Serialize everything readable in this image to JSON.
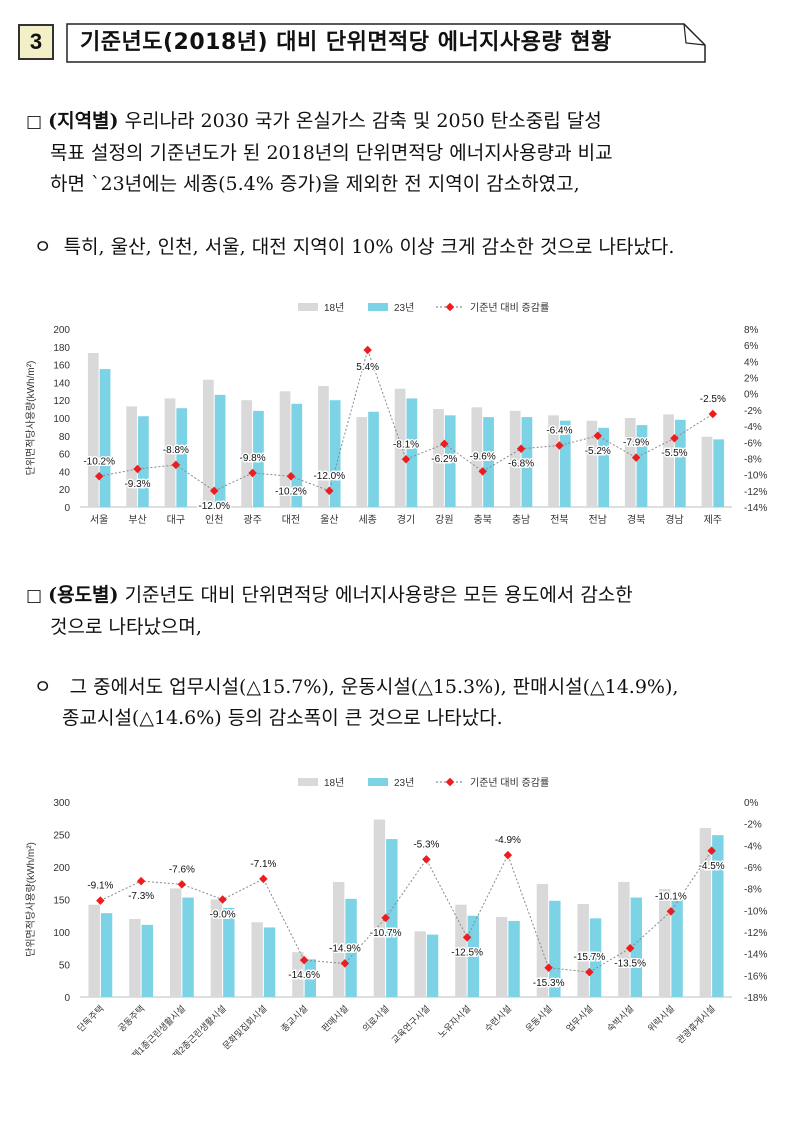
{
  "header": {
    "number": "3",
    "title": "기준년도(2018년) 대비 단위면적당 에너지사용량 현황"
  },
  "section1": {
    "marker": "□",
    "bold": "(지역별)",
    "line1": " 우리나라 2030 국가 온실가스 감축 및 2050 탄소중립 달성",
    "line2": "목표 설정의 기준년도가 된 2018년의 단위면적당 에너지사용량과 비교",
    "line3": "하면 `23년에는 세종(5.4% 증가)을 제외한 전 지역이 감소하였고,",
    "sub_marker": "ㅇ",
    "sub_text": "특히, 울산, 인천, 서울, 대전 지역이 10% 이상 크게 감소한 것으로 나타났다."
  },
  "section2": {
    "marker": "□",
    "bold": "(용도별)",
    "line1": " 기준년도 대비 단위면적당 에너지사용량은 모든 용도에서 감소한",
    "line2": "것으로 나타났으며,",
    "sub_marker": "ㅇ",
    "sub_line1": "그 중에서도 업무시설(△15.7%), 운동시설(△15.3%), 판매시설(△14.9%),",
    "sub_line2": "종교시설(△14.6%) 등의 감소폭이 큰 것으로 나타났다."
  },
  "legend": {
    "s18": "18년",
    "s23": "23년",
    "rate": "기준년 대비 증감률"
  },
  "colors": {
    "bar18": "#d9d9d9",
    "bar23": "#7dd3e6",
    "rate": "#ee1c1c"
  },
  "chart_data": [
    {
      "type": "bar",
      "ylabel": "단위면적당사용량(kWh/m²)",
      "ylim": [
        0,
        200
      ],
      "yticks": [
        "0",
        "20",
        "40",
        "60",
        "80",
        "100",
        "120",
        "140",
        "160",
        "180",
        "200"
      ],
      "y2lim": [
        -14,
        8
      ],
      "y2ticks": [
        "-14%",
        "-12%",
        "-10%",
        "-8%",
        "-6%",
        "-4%",
        "-2%",
        "0%",
        "2%",
        "4%",
        "6%",
        "8%"
      ],
      "categories": [
        "서울",
        "부산",
        "대구",
        "인천",
        "광주",
        "대전",
        "울산",
        "세종",
        "경기",
        "강원",
        "충북",
        "충남",
        "전북",
        "전남",
        "경북",
        "경남",
        "제주"
      ],
      "series": [
        {
          "name": "18년",
          "values": [
            173,
            113,
            122,
            143,
            120,
            130,
            136,
            101,
            133,
            110,
            112,
            108,
            103,
            97,
            100,
            104,
            79
          ]
        },
        {
          "name": "23년",
          "values": [
            155,
            102,
            111,
            126,
            108,
            116,
            120,
            107,
            122,
            103,
            101,
            101,
            97,
            89,
            92,
            98,
            76
          ]
        },
        {
          "name": "기준년 대비 증감률",
          "values": [
            -10.2,
            -9.3,
            -8.8,
            -12.0,
            -9.8,
            -10.2,
            -12.0,
            5.4,
            -8.1,
            -6.2,
            -9.6,
            -6.8,
            -6.4,
            -5.2,
            -7.9,
            -5.5,
            -2.5
          ]
        }
      ],
      "rate_labels": [
        "-10.2%",
        "-9.3%",
        "-8.8%",
        "-12.0%",
        "-9.8%",
        "-10.2%",
        "-12.0%",
        "5.4%",
        "-8.1%",
        "-6.2%",
        "-9.6%",
        "-6.8%",
        "-6.4%",
        "-5.2%",
        "-7.9%",
        "-5.5%",
        "-2.5%"
      ]
    },
    {
      "type": "bar",
      "ylabel": "단위면적당사용량(kWh/m²)",
      "ylim": [
        0,
        300
      ],
      "yticks": [
        "0",
        "50",
        "100",
        "150",
        "200",
        "250",
        "300"
      ],
      "y2lim": [
        -18,
        0
      ],
      "y2ticks": [
        "-18%",
        "-16%",
        "-14%",
        "-12%",
        "-10%",
        "-8%",
        "-6%",
        "-4%",
        "-2%",
        "0%"
      ],
      "categories": [
        "단독주택",
        "공동주택",
        "제1종근린생활시설",
        "제2종근린생활시설",
        "문화및집회시설",
        "종교시설",
        "판매시설",
        "의료시설",
        "교육연구시설",
        "노유자시설",
        "수련시설",
        "운동시설",
        "업무시설",
        "숙박시설",
        "위락시설",
        "관광휴게시설"
      ],
      "series": [
        {
          "name": "18년",
          "values": [
            142,
            120,
            167,
            150,
            115,
            69,
            177,
            273,
            101,
            142,
            123,
            174,
            143,
            177,
            166,
            260
          ]
        },
        {
          "name": "23년",
          "values": [
            129,
            111,
            153,
            137,
            107,
            58,
            151,
            243,
            96,
            125,
            117,
            148,
            121,
            153,
            150,
            249
          ]
        },
        {
          "name": "기준년 대비 증감률",
          "values": [
            -9.1,
            -7.3,
            -7.6,
            -9.0,
            -7.1,
            -14.6,
            -14.9,
            -10.7,
            -5.3,
            -12.5,
            -4.9,
            -15.3,
            -15.7,
            -13.5,
            -10.1,
            -4.5
          ]
        }
      ],
      "rate_labels": [
        "-9.1%",
        "-7.3%",
        "-7.6%",
        "-9.0%",
        "-7.1%",
        "-14.6%",
        "-14.9%",
        "-10.7%",
        "-5.3%",
        "-12.5%",
        "-4.9%",
        "-15.3%",
        "-15.7%",
        "-13.5%",
        "-10.1%",
        "-4.5%"
      ]
    }
  ]
}
